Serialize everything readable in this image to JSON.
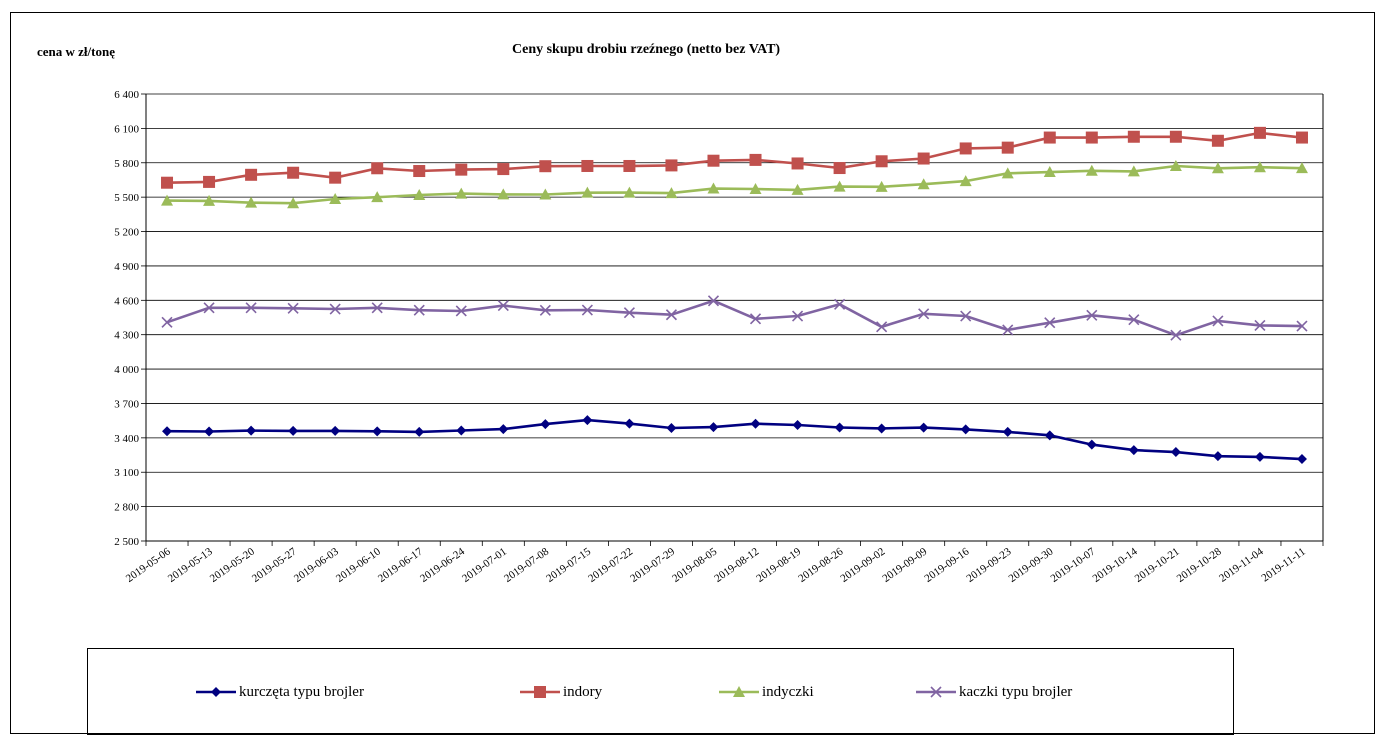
{
  "chart_data": {
    "type": "line",
    "title": "Ceny skupu drobiu rzeźnego (netto bez VAT)",
    "ylabel": "cena w zł/tonę",
    "xlabel": "",
    "ylim": [
      2500,
      6400
    ],
    "yticks": [
      2500,
      2800,
      3100,
      3400,
      3700,
      4000,
      4300,
      4600,
      4900,
      5200,
      5500,
      5800,
      6100,
      6400
    ],
    "ytick_labels": [
      "2 500",
      "2 800",
      "3 100",
      "3 400",
      "3 700",
      "4 000",
      "4 300",
      "4 600",
      "4 900",
      "5 200",
      "5 500",
      "5 800",
      "6 100",
      "6 400"
    ],
    "grid": "horizontal",
    "legend_position": "bottom",
    "x": [
      "2019-05-06",
      "2019-05-13",
      "2019-05-20",
      "2019-05-27",
      "2019-06-03",
      "2019-06-10",
      "2019-06-17",
      "2019-06-24",
      "2019-07-01",
      "2019-07-08",
      "2019-07-15",
      "2019-07-22",
      "2019-07-29",
      "2019-08-05",
      "2019-08-12",
      "2019-08-19",
      "2019-08-26",
      "2019-09-02",
      "2019-09-09",
      "2019-09-16",
      "2019-09-23",
      "2019-09-30",
      "2019-10-07",
      "2019-10-14",
      "2019-10-21",
      "2019-10-28",
      "2019-11-04",
      "2019-11-11"
    ],
    "series": [
      {
        "name": "kurczęta typu brojler",
        "color": "#000080",
        "marker": "diamond",
        "values": [
          3458,
          3455,
          3463,
          3461,
          3461,
          3457,
          3452,
          3464,
          3476,
          3520,
          3555,
          3524,
          3486,
          3494,
          3523,
          3512,
          3490,
          3482,
          3489,
          3474,
          3452,
          3422,
          3341,
          3293,
          3276,
          3240,
          3234,
          3215
        ]
      },
      {
        "name": "indory",
        "color": "#C0504D",
        "marker": "square",
        "values": [
          5626,
          5633,
          5695,
          5713,
          5670,
          5752,
          5728,
          5740,
          5745,
          5770,
          5772,
          5772,
          5777,
          5818,
          5825,
          5794,
          5754,
          5813,
          5837,
          5925,
          5932,
          6020,
          6020,
          6027,
          6027,
          5992,
          6061,
          6020
        ]
      },
      {
        "name": "indyczki",
        "color": "#9BBB59",
        "marker": "triangle",
        "values": [
          5470,
          5467,
          5452,
          5447,
          5484,
          5500,
          5519,
          5531,
          5524,
          5523,
          5539,
          5540,
          5535,
          5575,
          5571,
          5563,
          5592,
          5590,
          5613,
          5640,
          5708,
          5719,
          5730,
          5725,
          5772,
          5752,
          5761,
          5753
        ]
      },
      {
        "name": "kaczki typu brojler",
        "color": "#8064A2",
        "marker": "x",
        "values": [
          4408,
          4535,
          4535,
          4530,
          4524,
          4535,
          4514,
          4507,
          4554,
          4513,
          4515,
          4492,
          4474,
          4596,
          4439,
          4463,
          4565,
          4369,
          4482,
          4463,
          4342,
          4405,
          4469,
          4431,
          4296,
          4420,
          4381,
          4375
        ]
      }
    ]
  }
}
